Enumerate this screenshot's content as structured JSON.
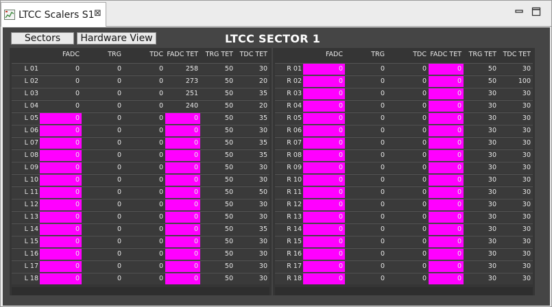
{
  "tab": {
    "title": "LTCC Scalers S1",
    "close_glyph": "⊠",
    "icon": "chart-icon"
  },
  "window_controls": {
    "minimize_icon": "minimize-icon",
    "maximize_icon": "maximize-icon"
  },
  "toolbar": {
    "sectors_label": "Sectors",
    "hardware_view_label": "Hardware View"
  },
  "sector_title": "LTCC SECTOR 1",
  "colors": {
    "highlight": "#ff00ff",
    "panel_bg": "#353535",
    "content_bg": "#454545"
  },
  "columns": [
    "FADC",
    "TRG",
    "TDC",
    "FADC TET",
    "TRG TET",
    "TDC TET"
  ],
  "left": {
    "rows": [
      {
        "label": "L 01",
        "fadc": "0",
        "trg": "0",
        "tdc": "0",
        "fadc_tet": "258",
        "trg_tet": "50",
        "tdc_tet": "30",
        "fadc_hi": false,
        "fadc_tet_hi": false
      },
      {
        "label": "L 02",
        "fadc": "0",
        "trg": "0",
        "tdc": "0",
        "fadc_tet": "273",
        "trg_tet": "50",
        "tdc_tet": "20",
        "fadc_hi": false,
        "fadc_tet_hi": false
      },
      {
        "label": "L 03",
        "fadc": "0",
        "trg": "0",
        "tdc": "0",
        "fadc_tet": "251",
        "trg_tet": "50",
        "tdc_tet": "35",
        "fadc_hi": false,
        "fadc_tet_hi": false
      },
      {
        "label": "L 04",
        "fadc": "0",
        "trg": "0",
        "tdc": "0",
        "fadc_tet": "240",
        "trg_tet": "50",
        "tdc_tet": "20",
        "fadc_hi": false,
        "fadc_tet_hi": false
      },
      {
        "label": "L 05",
        "fadc": "0",
        "trg": "0",
        "tdc": "0",
        "fadc_tet": "0",
        "trg_tet": "50",
        "tdc_tet": "35",
        "fadc_hi": true,
        "fadc_tet_hi": true
      },
      {
        "label": "L 06",
        "fadc": "0",
        "trg": "0",
        "tdc": "0",
        "fadc_tet": "0",
        "trg_tet": "50",
        "tdc_tet": "30",
        "fadc_hi": true,
        "fadc_tet_hi": true
      },
      {
        "label": "L 07",
        "fadc": "0",
        "trg": "0",
        "tdc": "0",
        "fadc_tet": "0",
        "trg_tet": "50",
        "tdc_tet": "35",
        "fadc_hi": true,
        "fadc_tet_hi": true
      },
      {
        "label": "L 08",
        "fadc": "0",
        "trg": "0",
        "tdc": "0",
        "fadc_tet": "0",
        "trg_tet": "50",
        "tdc_tet": "35",
        "fadc_hi": true,
        "fadc_tet_hi": true
      },
      {
        "label": "L 09",
        "fadc": "0",
        "trg": "0",
        "tdc": "0",
        "fadc_tet": "0",
        "trg_tet": "50",
        "tdc_tet": "30",
        "fadc_hi": true,
        "fadc_tet_hi": true
      },
      {
        "label": "L 10",
        "fadc": "0",
        "trg": "0",
        "tdc": "0",
        "fadc_tet": "0",
        "trg_tet": "50",
        "tdc_tet": "30",
        "fadc_hi": true,
        "fadc_tet_hi": true
      },
      {
        "label": "L 11",
        "fadc": "0",
        "trg": "0",
        "tdc": "0",
        "fadc_tet": "0",
        "trg_tet": "50",
        "tdc_tet": "50",
        "fadc_hi": true,
        "fadc_tet_hi": true
      },
      {
        "label": "L 12",
        "fadc": "0",
        "trg": "0",
        "tdc": "0",
        "fadc_tet": "0",
        "trg_tet": "50",
        "tdc_tet": "30",
        "fadc_hi": true,
        "fadc_tet_hi": true
      },
      {
        "label": "L 13",
        "fadc": "0",
        "trg": "0",
        "tdc": "0",
        "fadc_tet": "0",
        "trg_tet": "50",
        "tdc_tet": "30",
        "fadc_hi": true,
        "fadc_tet_hi": true
      },
      {
        "label": "L 14",
        "fadc": "0",
        "trg": "0",
        "tdc": "0",
        "fadc_tet": "0",
        "trg_tet": "50",
        "tdc_tet": "35",
        "fadc_hi": true,
        "fadc_tet_hi": true
      },
      {
        "label": "L 15",
        "fadc": "0",
        "trg": "0",
        "tdc": "0",
        "fadc_tet": "0",
        "trg_tet": "50",
        "tdc_tet": "30",
        "fadc_hi": true,
        "fadc_tet_hi": true
      },
      {
        "label": "L 16",
        "fadc": "0",
        "trg": "0",
        "tdc": "0",
        "fadc_tet": "0",
        "trg_tet": "50",
        "tdc_tet": "30",
        "fadc_hi": true,
        "fadc_tet_hi": true
      },
      {
        "label": "L 17",
        "fadc": "0",
        "trg": "0",
        "tdc": "0",
        "fadc_tet": "0",
        "trg_tet": "50",
        "tdc_tet": "30",
        "fadc_hi": true,
        "fadc_tet_hi": true
      },
      {
        "label": "L 18",
        "fadc": "0",
        "trg": "0",
        "tdc": "0",
        "fadc_tet": "0",
        "trg_tet": "50",
        "tdc_tet": "30",
        "fadc_hi": true,
        "fadc_tet_hi": true
      }
    ]
  },
  "right": {
    "rows": [
      {
        "label": "R 01",
        "fadc": "0",
        "trg": "0",
        "tdc": "0",
        "fadc_tet": "0",
        "trg_tet": "50",
        "tdc_tet": "30",
        "fadc_hi": true,
        "fadc_tet_hi": true
      },
      {
        "label": "R 02",
        "fadc": "0",
        "trg": "0",
        "tdc": "0",
        "fadc_tet": "0",
        "trg_tet": "50",
        "tdc_tet": "100",
        "fadc_hi": true,
        "fadc_tet_hi": true
      },
      {
        "label": "R 03",
        "fadc": "0",
        "trg": "0",
        "tdc": "0",
        "fadc_tet": "0",
        "trg_tet": "30",
        "tdc_tet": "30",
        "fadc_hi": true,
        "fadc_tet_hi": true
      },
      {
        "label": "R 04",
        "fadc": "0",
        "trg": "0",
        "tdc": "0",
        "fadc_tet": "0",
        "trg_tet": "30",
        "tdc_tet": "30",
        "fadc_hi": true,
        "fadc_tet_hi": true
      },
      {
        "label": "R 05",
        "fadc": "0",
        "trg": "0",
        "tdc": "0",
        "fadc_tet": "0",
        "trg_tet": "30",
        "tdc_tet": "30",
        "fadc_hi": true,
        "fadc_tet_hi": true
      },
      {
        "label": "R 06",
        "fadc": "0",
        "trg": "0",
        "tdc": "0",
        "fadc_tet": "0",
        "trg_tet": "30",
        "tdc_tet": "30",
        "fadc_hi": true,
        "fadc_tet_hi": true
      },
      {
        "label": "R 07",
        "fadc": "0",
        "trg": "0",
        "tdc": "0",
        "fadc_tet": "0",
        "trg_tet": "30",
        "tdc_tet": "30",
        "fadc_hi": true,
        "fadc_tet_hi": true
      },
      {
        "label": "R 08",
        "fadc": "0",
        "trg": "0",
        "tdc": "0",
        "fadc_tet": "0",
        "trg_tet": "30",
        "tdc_tet": "30",
        "fadc_hi": true,
        "fadc_tet_hi": true
      },
      {
        "label": "R 09",
        "fadc": "0",
        "trg": "0",
        "tdc": "0",
        "fadc_tet": "0",
        "trg_tet": "30",
        "tdc_tet": "30",
        "fadc_hi": true,
        "fadc_tet_hi": true
      },
      {
        "label": "R 10",
        "fadc": "0",
        "trg": "0",
        "tdc": "0",
        "fadc_tet": "0",
        "trg_tet": "30",
        "tdc_tet": "30",
        "fadc_hi": true,
        "fadc_tet_hi": true
      },
      {
        "label": "R 11",
        "fadc": "0",
        "trg": "0",
        "tdc": "0",
        "fadc_tet": "0",
        "trg_tet": "30",
        "tdc_tet": "30",
        "fadc_hi": true,
        "fadc_tet_hi": true
      },
      {
        "label": "R 12",
        "fadc": "0",
        "trg": "0",
        "tdc": "0",
        "fadc_tet": "0",
        "trg_tet": "30",
        "tdc_tet": "30",
        "fadc_hi": true,
        "fadc_tet_hi": true
      },
      {
        "label": "R 13",
        "fadc": "0",
        "trg": "0",
        "tdc": "0",
        "fadc_tet": "0",
        "trg_tet": "30",
        "tdc_tet": "30",
        "fadc_hi": true,
        "fadc_tet_hi": true
      },
      {
        "label": "R 14",
        "fadc": "0",
        "trg": "0",
        "tdc": "0",
        "fadc_tet": "0",
        "trg_tet": "30",
        "tdc_tet": "30",
        "fadc_hi": true,
        "fadc_tet_hi": true
      },
      {
        "label": "R 15",
        "fadc": "0",
        "trg": "0",
        "tdc": "0",
        "fadc_tet": "0",
        "trg_tet": "30",
        "tdc_tet": "30",
        "fadc_hi": true,
        "fadc_tet_hi": true
      },
      {
        "label": "R 16",
        "fadc": "0",
        "trg": "0",
        "tdc": "0",
        "fadc_tet": "0",
        "trg_tet": "30",
        "tdc_tet": "30",
        "fadc_hi": true,
        "fadc_tet_hi": true
      },
      {
        "label": "R 17",
        "fadc": "0",
        "trg": "0",
        "tdc": "0",
        "fadc_tet": "0",
        "trg_tet": "30",
        "tdc_tet": "30",
        "fadc_hi": true,
        "fadc_tet_hi": true
      },
      {
        "label": "R 18",
        "fadc": "0",
        "trg": "0",
        "tdc": "0",
        "fadc_tet": "0",
        "trg_tet": "30",
        "tdc_tet": "30",
        "fadc_hi": true,
        "fadc_tet_hi": true
      }
    ]
  }
}
